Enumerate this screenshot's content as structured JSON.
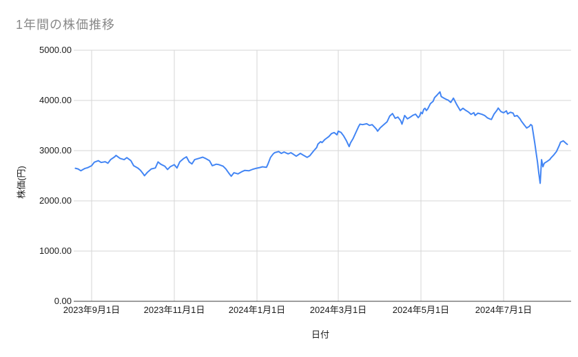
{
  "chart_data": {
    "type": "line",
    "title": "1年間の株価推移",
    "xlabel": "日付",
    "ylabel": "株価(円)",
    "ylim": [
      0,
      5000
    ],
    "y_tick_step": 1000,
    "y_tick_labels": [
      "0.00",
      "1000.00",
      "2000.00",
      "3000.00",
      "4000.00",
      "5000.00"
    ],
    "x_ticks": [
      {
        "date": "2023-09-01",
        "label": "2023年9月1日"
      },
      {
        "date": "2023-11-01",
        "label": "2023年11月1日"
      },
      {
        "date": "2024-01-01",
        "label": "2024年1月1日"
      },
      {
        "date": "2024-03-01",
        "label": "2024年3月1日"
      },
      {
        "date": "2024-05-01",
        "label": "2024年5月1日"
      },
      {
        "date": "2024-07-01",
        "label": "2024年7月1日"
      }
    ],
    "grid": true,
    "legend": "none",
    "line_color": "#4285f4",
    "series": [
      {
        "dates": [
          "2023-08-20",
          "2023-08-22",
          "2023-08-24",
          "2023-08-27",
          "2023-08-29",
          "2023-09-01",
          "2023-09-03",
          "2023-09-06",
          "2023-09-08",
          "2023-09-11",
          "2023-09-13",
          "2023-09-15",
          "2023-09-18",
          "2023-09-19",
          "2023-09-22",
          "2023-09-25",
          "2023-09-27",
          "2023-09-30",
          "2023-10-02",
          "2023-10-05",
          "2023-10-07",
          "2023-10-09",
          "2023-10-10",
          "2023-10-12",
          "2023-10-15",
          "2023-10-18",
          "2023-10-20",
          "2023-10-22",
          "2023-10-25",
          "2023-10-27",
          "2023-10-29",
          "2023-11-01",
          "2023-11-03",
          "2023-11-05",
          "2023-11-08",
          "2023-11-10",
          "2023-11-12",
          "2023-11-14",
          "2023-11-16",
          "2023-11-19",
          "2023-11-22",
          "2023-11-24",
          "2023-11-27",
          "2023-11-29",
          "2023-12-02",
          "2023-12-04",
          "2023-12-07",
          "2023-12-09",
          "2023-12-11",
          "2023-12-13",
          "2023-12-15",
          "2023-12-18",
          "2023-12-21",
          "2023-12-23",
          "2023-12-26",
          "2023-12-29",
          "2023-12-31",
          "2024-01-03",
          "2024-01-05",
          "2024-01-08",
          "2024-01-09",
          "2024-01-11",
          "2024-01-13",
          "2024-01-14",
          "2024-01-17",
          "2024-01-19",
          "2024-01-21",
          "2024-01-24",
          "2024-01-26",
          "2024-01-28",
          "2024-01-30",
          "2024-02-02",
          "2024-02-04",
          "2024-02-07",
          "2024-02-09",
          "2024-02-12",
          "2024-02-14",
          "2024-02-15",
          "2024-02-17",
          "2024-02-18",
          "2024-02-20",
          "2024-02-22",
          "2024-02-23",
          "2024-02-25",
          "2024-02-27",
          "2024-02-29",
          "2024-03-01",
          "2024-03-03",
          "2024-03-05",
          "2024-03-07",
          "2024-03-09",
          "2024-03-10",
          "2024-03-12",
          "2024-03-14",
          "2024-03-16",
          "2024-03-17",
          "2024-03-19",
          "2024-03-22",
          "2024-03-24",
          "2024-03-26",
          "2024-03-29",
          "2024-03-30",
          "2024-04-01",
          "2024-04-04",
          "2024-04-06",
          "2024-04-08",
          "2024-04-10",
          "2024-04-12",
          "2024-04-14",
          "2024-04-16",
          "2024-04-17",
          "2024-04-19",
          "2024-04-21",
          "2024-04-23",
          "2024-04-25",
          "2024-04-27",
          "2024-04-29",
          "2024-04-30",
          "2024-05-01",
          "2024-05-02",
          "2024-05-03",
          "2024-05-04",
          "2024-05-05",
          "2024-05-06",
          "2024-05-08",
          "2024-05-10",
          "2024-05-11",
          "2024-05-13",
          "2024-05-15",
          "2024-05-16",
          "2024-05-18",
          "2024-05-20",
          "2024-05-21",
          "2024-05-23",
          "2024-05-25",
          "2024-05-27",
          "2024-05-28",
          "2024-05-30",
          "2024-06-01",
          "2024-06-03",
          "2024-06-05",
          "2024-06-07",
          "2024-06-09",
          "2024-06-10",
          "2024-06-12",
          "2024-06-15",
          "2024-06-17",
          "2024-06-19",
          "2024-06-21",
          "2024-06-22",
          "2024-06-24",
          "2024-06-26",
          "2024-06-27",
          "2024-06-29",
          "2024-07-01",
          "2024-07-03",
          "2024-07-04",
          "2024-07-06",
          "2024-07-08",
          "2024-07-09",
          "2024-07-11",
          "2024-07-13",
          "2024-07-14",
          "2024-07-16",
          "2024-07-18",
          "2024-07-20",
          "2024-07-21",
          "2024-07-22",
          "2024-07-24",
          "2024-07-25",
          "2024-07-26",
          "2024-07-27",
          "2024-07-28",
          "2024-07-29",
          "2024-07-30",
          "2024-07-31",
          "2024-08-02",
          "2024-08-04",
          "2024-08-05",
          "2024-08-07",
          "2024-08-09",
          "2024-08-11",
          "2024-08-12",
          "2024-08-14",
          "2024-08-16",
          "2024-08-17"
        ],
        "values": [
          2650,
          2635,
          2600,
          2645,
          2660,
          2700,
          2770,
          2800,
          2765,
          2780,
          2750,
          2820,
          2877,
          2905,
          2845,
          2820,
          2860,
          2800,
          2700,
          2655,
          2610,
          2540,
          2500,
          2565,
          2635,
          2655,
          2775,
          2730,
          2690,
          2625,
          2680,
          2720,
          2655,
          2775,
          2845,
          2877,
          2775,
          2735,
          2820,
          2845,
          2870,
          2845,
          2800,
          2700,
          2730,
          2720,
          2690,
          2635,
          2560,
          2490,
          2560,
          2537,
          2584,
          2607,
          2598,
          2630,
          2645,
          2663,
          2678,
          2668,
          2725,
          2866,
          2936,
          2959,
          2982,
          2945,
          2973,
          2936,
          2959,
          2926,
          2889,
          2945,
          2913,
          2866,
          2899,
          3000,
          3060,
          3130,
          3180,
          3160,
          3220,
          3260,
          3280,
          3340,
          3360,
          3315,
          3387,
          3363,
          3292,
          3199,
          3081,
          3152,
          3245,
          3363,
          3480,
          3528,
          3518,
          3536,
          3503,
          3518,
          3433,
          3387,
          3456,
          3528,
          3575,
          3691,
          3739,
          3644,
          3668,
          3598,
          3528,
          3700,
          3633,
          3666,
          3703,
          3726,
          3657,
          3690,
          3765,
          3736,
          3821,
          3844,
          3798,
          3831,
          3937,
          3984,
          4054,
          4110,
          4171,
          4077,
          4045,
          4017,
          4007,
          3960,
          4045,
          3937,
          3891,
          3798,
          3844,
          3803,
          3770,
          3723,
          3756,
          3700,
          3746,
          3723,
          3700,
          3653,
          3629,
          3620,
          3732,
          3802,
          3848,
          3778,
          3755,
          3792,
          3732,
          3765,
          3746,
          3685,
          3699,
          3639,
          3592,
          3521,
          3451,
          3484,
          3521,
          3498,
          3147,
          2961,
          2773,
          2540,
          2350,
          2820,
          2680,
          2750,
          2783,
          2820,
          2858,
          2914,
          2984,
          3100,
          3170,
          3195,
          3147,
          3124
        ]
      }
    ]
  }
}
